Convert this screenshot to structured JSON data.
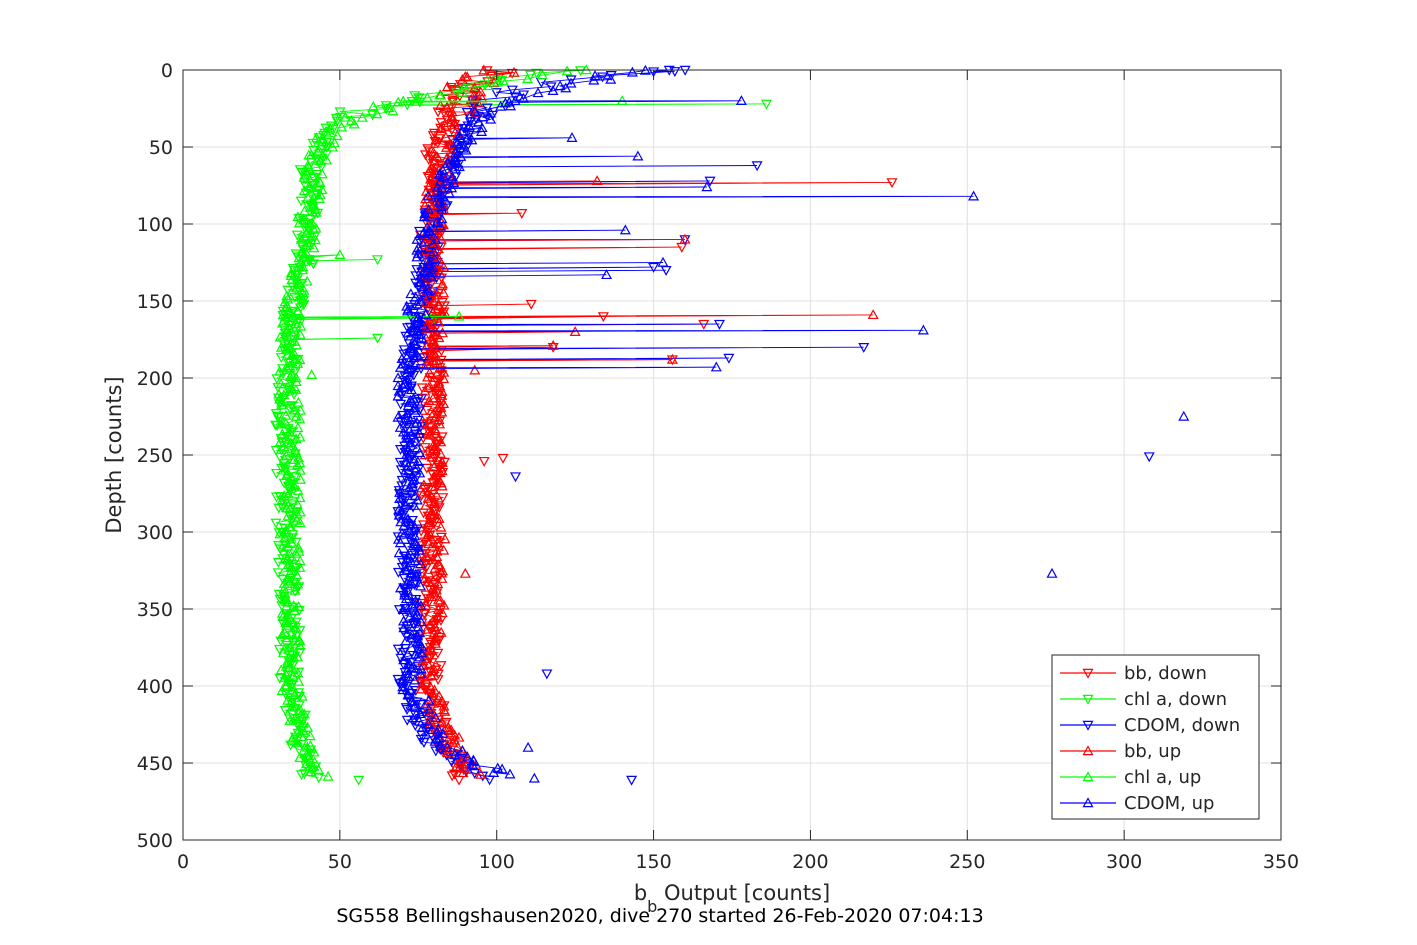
{
  "chart_data": {
    "type": "scatter",
    "title": "",
    "xlabel_main": "b",
    "xlabel_sub": "b",
    "xlabel_rest": " Output [counts]",
    "ylabel": "Depth [counts]",
    "caption": "SG558 Bellingshausen2020, dive 270 started 26-Feb-2020 07:04:13",
    "xlim": [
      0,
      350
    ],
    "ylim": [
      0,
      500
    ],
    "y_reversed": true,
    "grid": true,
    "legend_position": "bottom-right",
    "x_ticks": [
      "0",
      "50",
      "100",
      "150",
      "200",
      "250",
      "300",
      "350"
    ],
    "y_ticks": [
      "0",
      "50",
      "100",
      "150",
      "200",
      "250",
      "300",
      "350",
      "400",
      "450",
      "500"
    ],
    "series": [
      {
        "name": "bb, down",
        "color": "#ff0000",
        "marker": "triangle-down",
        "profile": [
          [
            0,
            100
          ],
          [
            10,
            90
          ],
          [
            20,
            88
          ],
          [
            30,
            85
          ],
          [
            40,
            83
          ],
          [
            60,
            80
          ],
          [
            80,
            79
          ],
          [
            100,
            79
          ],
          [
            150,
            80
          ],
          [
            200,
            79
          ],
          [
            250,
            80
          ],
          [
            300,
            79
          ],
          [
            350,
            79
          ],
          [
            400,
            79
          ],
          [
            420,
            81
          ],
          [
            440,
            85
          ],
          [
            458,
            88
          ]
        ],
        "spikes": [
          [
            73,
            226
          ],
          [
            93,
            108
          ],
          [
            152,
            111
          ],
          [
            160,
            134
          ],
          [
            165,
            166
          ],
          [
            188,
            156
          ],
          [
            115,
            159
          ],
          [
            180,
            118
          ]
        ],
        "outliers": [
          [
            252,
            102
          ],
          [
            254,
            96
          ],
          [
            461,
            88
          ]
        ]
      },
      {
        "name": "chl a, down",
        "color": "#00ff00",
        "marker": "triangle-down",
        "profile": [
          [
            0,
            128
          ],
          [
            5,
            105
          ],
          [
            10,
            90
          ],
          [
            15,
            82
          ],
          [
            20,
            72
          ],
          [
            25,
            60
          ],
          [
            30,
            52
          ],
          [
            40,
            46
          ],
          [
            60,
            41
          ],
          [
            80,
            40
          ],
          [
            100,
            40
          ],
          [
            130,
            38
          ],
          [
            160,
            35
          ],
          [
            200,
            33
          ],
          [
            250,
            33
          ],
          [
            300,
            33
          ],
          [
            350,
            34
          ],
          [
            400,
            34
          ],
          [
            440,
            38
          ],
          [
            460,
            41
          ]
        ],
        "spikes": [
          [
            22,
            186
          ],
          [
            123,
            62
          ],
          [
            174,
            62
          ],
          [
            161,
            80
          ]
        ],
        "outliers": [
          [
            461,
            56
          ]
        ]
      },
      {
        "name": "CDOM, down",
        "color": "#0000ff",
        "marker": "triangle-down",
        "profile": [
          [
            0,
            155
          ],
          [
            5,
            130
          ],
          [
            10,
            112
          ],
          [
            20,
            98
          ],
          [
            30,
            92
          ],
          [
            50,
            88
          ],
          [
            70,
            84
          ],
          [
            100,
            79
          ],
          [
            130,
            78
          ],
          [
            160,
            75
          ],
          [
            200,
            73
          ],
          [
            250,
            72
          ],
          [
            300,
            72
          ],
          [
            350,
            72
          ],
          [
            400,
            72
          ],
          [
            430,
            76
          ],
          [
            450,
            88
          ],
          [
            460,
            98
          ]
        ],
        "spikes": [
          [
            62,
            183
          ],
          [
            72,
            168
          ],
          [
            110,
            160
          ],
          [
            130,
            154
          ],
          [
            165,
            171
          ],
          [
            180,
            217
          ],
          [
            187,
            174
          ],
          [
            128,
            150
          ],
          [
            0,
            155
          ]
        ],
        "outliers": [
          [
            251,
            308
          ],
          [
            264,
            106
          ],
          [
            392,
            116
          ],
          [
            461,
            143
          ]
        ]
      },
      {
        "name": "bb, up",
        "color": "#ff0000",
        "marker": "triangle-up",
        "profile": [
          [
            0,
            103
          ],
          [
            5,
            95
          ],
          [
            12,
            90
          ],
          [
            20,
            88
          ],
          [
            30,
            86
          ],
          [
            60,
            82
          ],
          [
            100,
            80
          ],
          [
            150,
            80
          ],
          [
            200,
            80
          ],
          [
            250,
            80
          ],
          [
            300,
            80
          ],
          [
            350,
            80
          ],
          [
            400,
            79
          ],
          [
            425,
            82
          ],
          [
            445,
            88
          ],
          [
            458,
            92
          ]
        ],
        "spikes": [
          [
            72,
            132
          ],
          [
            110,
            160
          ],
          [
            159,
            220
          ],
          [
            170,
            125
          ],
          [
            188,
            156
          ],
          [
            179,
            118
          ]
        ],
        "outliers": [
          [
            327,
            90
          ],
          [
            195,
            93
          ]
        ]
      },
      {
        "name": "chl a, up",
        "color": "#00ff00",
        "marker": "triangle-up",
        "profile": [
          [
            0,
            126
          ],
          [
            5,
            106
          ],
          [
            12,
            88
          ],
          [
            20,
            70
          ],
          [
            30,
            56
          ],
          [
            40,
            47
          ],
          [
            60,
            42
          ],
          [
            90,
            40
          ],
          [
            130,
            38
          ],
          [
            170,
            34
          ],
          [
            220,
            34
          ],
          [
            280,
            34
          ],
          [
            340,
            35
          ],
          [
            400,
            34
          ],
          [
            440,
            38
          ],
          [
            458,
            43
          ]
        ],
        "spikes": [
          [
            20,
            140
          ],
          [
            120,
            50
          ],
          [
            160,
            88
          ]
        ],
        "outliers": [
          [
            198,
            41
          ]
        ]
      },
      {
        "name": "CDOM, up",
        "color": "#0000ff",
        "marker": "triangle-up",
        "profile": [
          [
            0,
            150
          ],
          [
            8,
            125
          ],
          [
            15,
            110
          ],
          [
            25,
            100
          ],
          [
            40,
            92
          ],
          [
            60,
            86
          ],
          [
            90,
            80
          ],
          [
            120,
            77
          ],
          [
            160,
            74
          ],
          [
            200,
            72
          ],
          [
            250,
            72
          ],
          [
            300,
            72
          ],
          [
            350,
            73
          ],
          [
            400,
            73
          ],
          [
            430,
            79
          ],
          [
            450,
            92
          ],
          [
            458,
            105
          ]
        ],
        "spikes": [
          [
            20,
            178
          ],
          [
            56,
            145
          ],
          [
            76,
            167
          ],
          [
            82,
            252
          ],
          [
            104,
            141
          ],
          [
            125,
            153
          ],
          [
            169,
            236
          ],
          [
            193,
            170
          ],
          [
            133,
            135
          ],
          [
            44,
            124
          ]
        ],
        "outliers": [
          [
            225,
            319
          ],
          [
            327,
            277
          ],
          [
            440,
            110
          ],
          [
            460,
            112
          ]
        ]
      }
    ]
  }
}
